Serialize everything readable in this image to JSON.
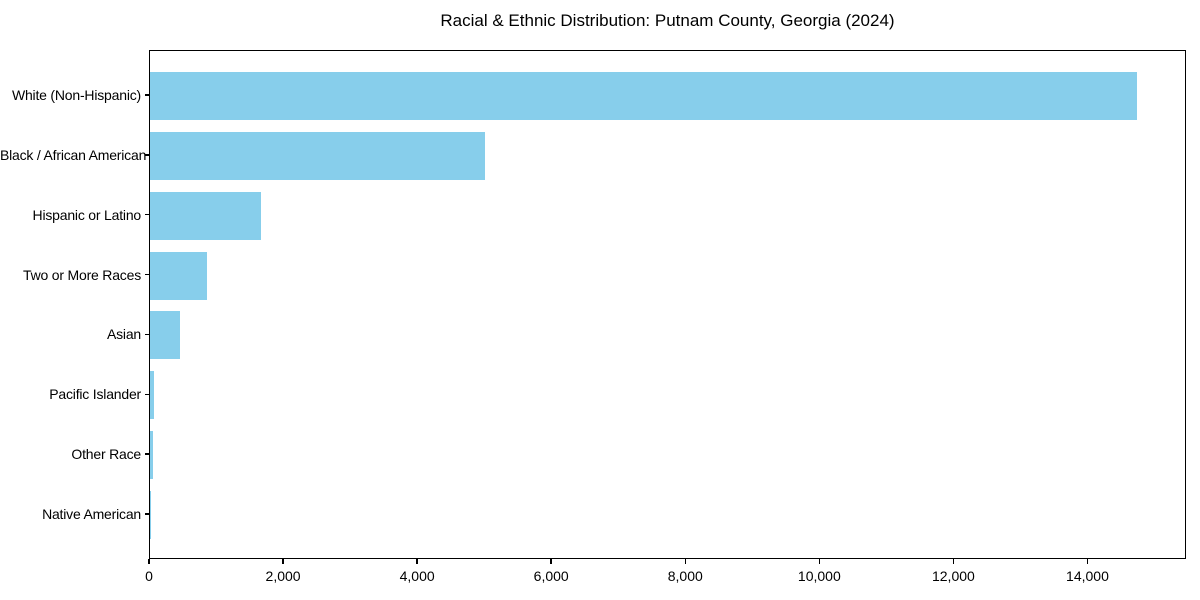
{
  "chart_data": {
    "type": "bar",
    "orientation": "horizontal",
    "title": "Racial & Ethnic Distribution: Putnam County, Georgia (2024)",
    "categories": [
      "White (Non-Hispanic)",
      "Black / African American",
      "Hispanic or Latino",
      "Two or More Races",
      "Asian",
      "Pacific Islander",
      "Other Race",
      "Native American"
    ],
    "values": [
      14730,
      5000,
      1650,
      855,
      450,
      60,
      45,
      10
    ],
    "xlabel": "",
    "ylabel": "",
    "xlim": [
      0,
      15470
    ],
    "xticks": [
      0,
      2000,
      4000,
      6000,
      8000,
      10000,
      12000,
      14000
    ],
    "xtick_labels": [
      "0",
      "2,000",
      "4,000",
      "6,000",
      "8,000",
      "10,000",
      "12,000",
      "14,000"
    ],
    "bar_color": "#87CEEB",
    "axis_color": "#000000",
    "text_color": "#000000",
    "background": "#ffffff",
    "grid": false,
    "legend": null
  }
}
